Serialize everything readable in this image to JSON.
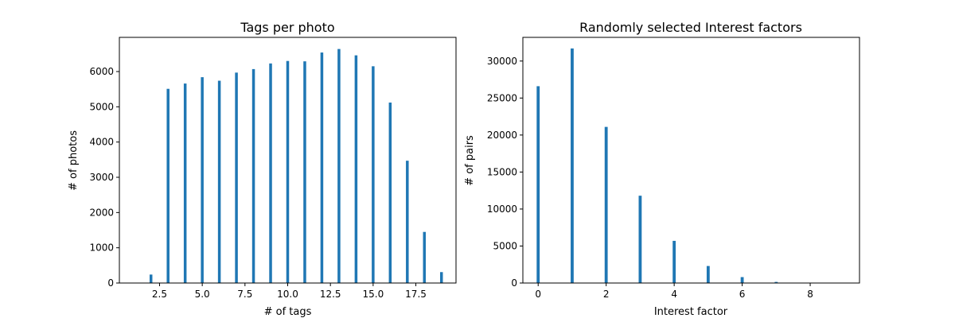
{
  "chart_data": [
    {
      "type": "bar",
      "title": "Tags per photo",
      "xlabel": "# of tags",
      "ylabel": "# of photos",
      "xlim": [
        0.15,
        19.85
      ],
      "ylim": [
        0,
        6970
      ],
      "xticks": [
        2.5,
        5.0,
        7.5,
        10.0,
        12.5,
        15.0,
        17.5
      ],
      "xtick_labels": [
        "2.5",
        "5.0",
        "7.5",
        "10.0",
        "12.5",
        "15.0",
        "17.5"
      ],
      "yticks": [
        0,
        1000,
        2000,
        3000,
        4000,
        5000,
        6000
      ],
      "ytick_labels": [
        "0",
        "1000",
        "2000",
        "3000",
        "4000",
        "5000",
        "6000"
      ],
      "x": [
        2,
        3,
        4,
        5,
        6,
        7,
        8,
        9,
        10,
        11,
        12,
        13,
        14,
        15,
        16,
        17,
        18,
        19
      ],
      "values": [
        240,
        5510,
        5660,
        5840,
        5740,
        5970,
        6070,
        6230,
        6300,
        6290,
        6540,
        6640,
        6460,
        6150,
        5120,
        3470,
        1450,
        310
      ],
      "color": "#1f77b4",
      "grid": false
    },
    {
      "type": "bar",
      "title": "Randomly selected Interest factors",
      "xlabel": "Interest factor",
      "ylabel": "# of pairs",
      "xlim": [
        -0.45,
        9.45
      ],
      "ylim": [
        0,
        33200
      ],
      "xticks": [
        0,
        2,
        4,
        6,
        8
      ],
      "xtick_labels": [
        "0",
        "2",
        "4",
        "6",
        "8"
      ],
      "yticks": [
        0,
        5000,
        10000,
        15000,
        20000,
        25000,
        30000
      ],
      "ytick_labels": [
        "0",
        "5000",
        "10000",
        "15000",
        "20000",
        "25000",
        "30000"
      ],
      "x": [
        0,
        1,
        2,
        3,
        4,
        5,
        6,
        7,
        8,
        9
      ],
      "values": [
        26600,
        31700,
        21100,
        11800,
        5700,
        2300,
        800,
        150,
        20,
        5
      ],
      "color": "#1f77b4",
      "grid": false
    }
  ]
}
